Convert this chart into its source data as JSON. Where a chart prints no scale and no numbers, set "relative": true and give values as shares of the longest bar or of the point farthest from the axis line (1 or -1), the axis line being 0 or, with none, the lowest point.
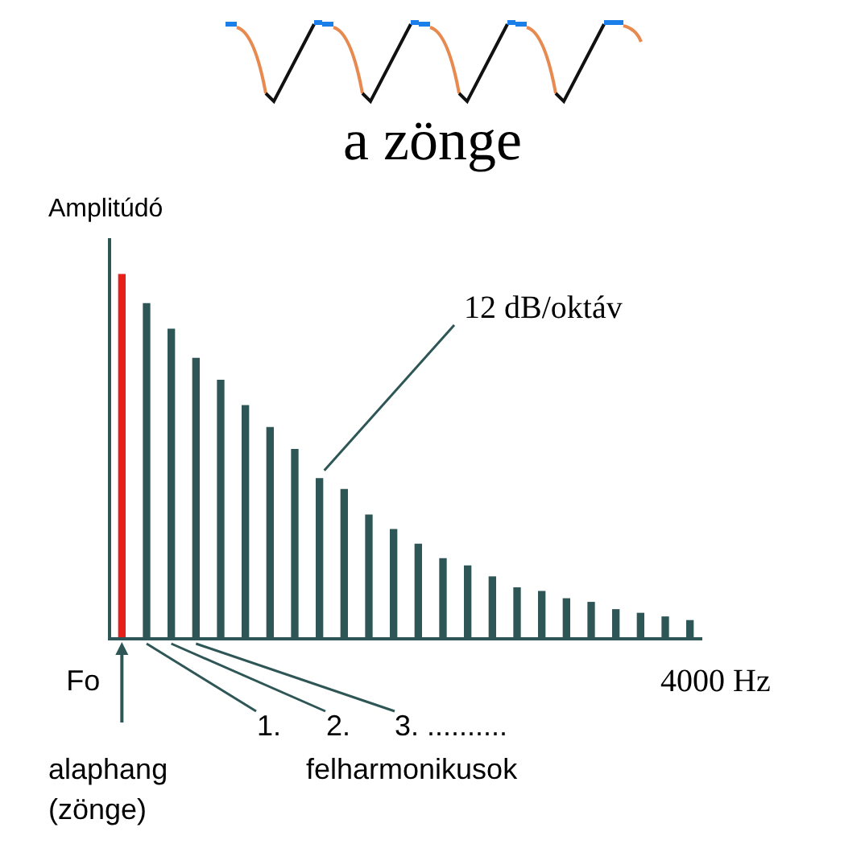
{
  "chart_data": {
    "type": "bar",
    "title": "a zönge",
    "ylabel": "Amplitúdó",
    "xlabel": "4000 Hz",
    "categories": [
      null,
      null,
      null,
      null,
      null,
      null,
      null,
      null,
      null,
      null,
      null,
      null,
      null,
      null,
      null,
      null,
      null,
      null,
      null,
      null,
      null,
      null,
      null,
      null
    ],
    "values": [
      1,
      0.92,
      0.85,
      0.77,
      0.71,
      0.64,
      0.58,
      0.52,
      0.44,
      0.41,
      0.34,
      0.3,
      0.26,
      0.22,
      0.2,
      0.17,
      0.14,
      0.13,
      0.11,
      0.1,
      0.08,
      0.07,
      0.06,
      0.05
    ],
    "colors": [
      "#e8201a",
      "#2f5656",
      "#2f5656",
      "#2f5656",
      "#2f5656",
      "#2f5656",
      "#2f5656",
      "#2f5656",
      "#2f5656",
      "#2f5656",
      "#2f5656",
      "#2f5656",
      "#2f5656",
      "#2f5656",
      "#2f5656",
      "#2f5656",
      "#2f5656",
      "#2f5656",
      "#2f5656",
      "#2f5656",
      "#2f5656",
      "#2f5656",
      "#2f5656",
      "#2f5656"
    ],
    "relative": true,
    "grid": false,
    "legend": false,
    "annotations": [
      "12 dB/oktáv",
      "1.",
      "2.",
      "3. ..........",
      "Fo",
      "felharmonikusok",
      "alaphang (zönge)"
    ]
  }
}
